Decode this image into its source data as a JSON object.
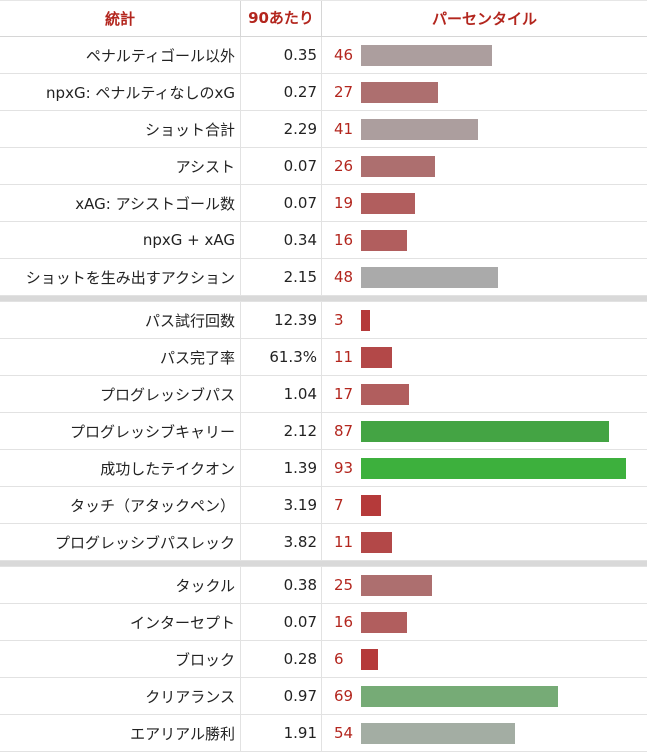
{
  "header": {
    "stat": "統計",
    "per90": "90あたり",
    "percentile": "パーセンタイル"
  },
  "groups": [
    [
      {
        "stat": "ペナルティゴール以外",
        "per90": "0.35",
        "pct": "46",
        "color": "#ac9e9e"
      },
      {
        "stat": "npxG: ペナルティなしのxG",
        "per90": "0.27",
        "pct": "27",
        "color": "#ad6f6f"
      },
      {
        "stat": "ショット合計",
        "per90": "2.29",
        "pct": "41",
        "color": "#ac9e9e"
      },
      {
        "stat": "アシスト",
        "per90": "0.07",
        "pct": "26",
        "color": "#ad6f6f"
      },
      {
        "stat": "xAG: アシストゴール数",
        "per90": "0.07",
        "pct": "19",
        "color": "#b15e5e"
      },
      {
        "stat": "npxG + xAG",
        "per90": "0.34",
        "pct": "16",
        "color": "#b15e5e"
      },
      {
        "stat": "ショットを生み出すアクション",
        "per90": "2.15",
        "pct": "48",
        "color": "#aaaaaa"
      }
    ],
    [
      {
        "stat": "パス試行回数",
        "per90": "12.39",
        "pct": "3",
        "color": "#b53a3a"
      },
      {
        "stat": "パス完了率",
        "per90": "61.3%",
        "pct": "11",
        "color": "#b34848"
      },
      {
        "stat": "プログレッシブパス",
        "per90": "1.04",
        "pct": "17",
        "color": "#b15e5e"
      },
      {
        "stat": "プログレッシブキャリー",
        "per90": "2.12",
        "pct": "87",
        "color": "#44a444"
      },
      {
        "stat": "成功したテイクオン",
        "per90": "1.39",
        "pct": "93",
        "color": "#3db03d"
      },
      {
        "stat": "タッチ（アタックペン）",
        "per90": "3.19",
        "pct": "7",
        "color": "#b53a3a"
      },
      {
        "stat": "プログレッシブパスレック",
        "per90": "3.82",
        "pct": "11",
        "color": "#b34848"
      }
    ],
    [
      {
        "stat": "タックル",
        "per90": "0.38",
        "pct": "25",
        "color": "#ad6f6f"
      },
      {
        "stat": "インターセプト",
        "per90": "0.07",
        "pct": "16",
        "color": "#b15e5e"
      },
      {
        "stat": "ブロック",
        "per90": "0.28",
        "pct": "6",
        "color": "#b53a3a"
      },
      {
        "stat": "クリアランス",
        "per90": "0.97",
        "pct": "69",
        "color": "#76ab76"
      },
      {
        "stat": "エアリアル勝利",
        "per90": "1.91",
        "pct": "54",
        "color": "#a3ada3"
      }
    ]
  ]
}
